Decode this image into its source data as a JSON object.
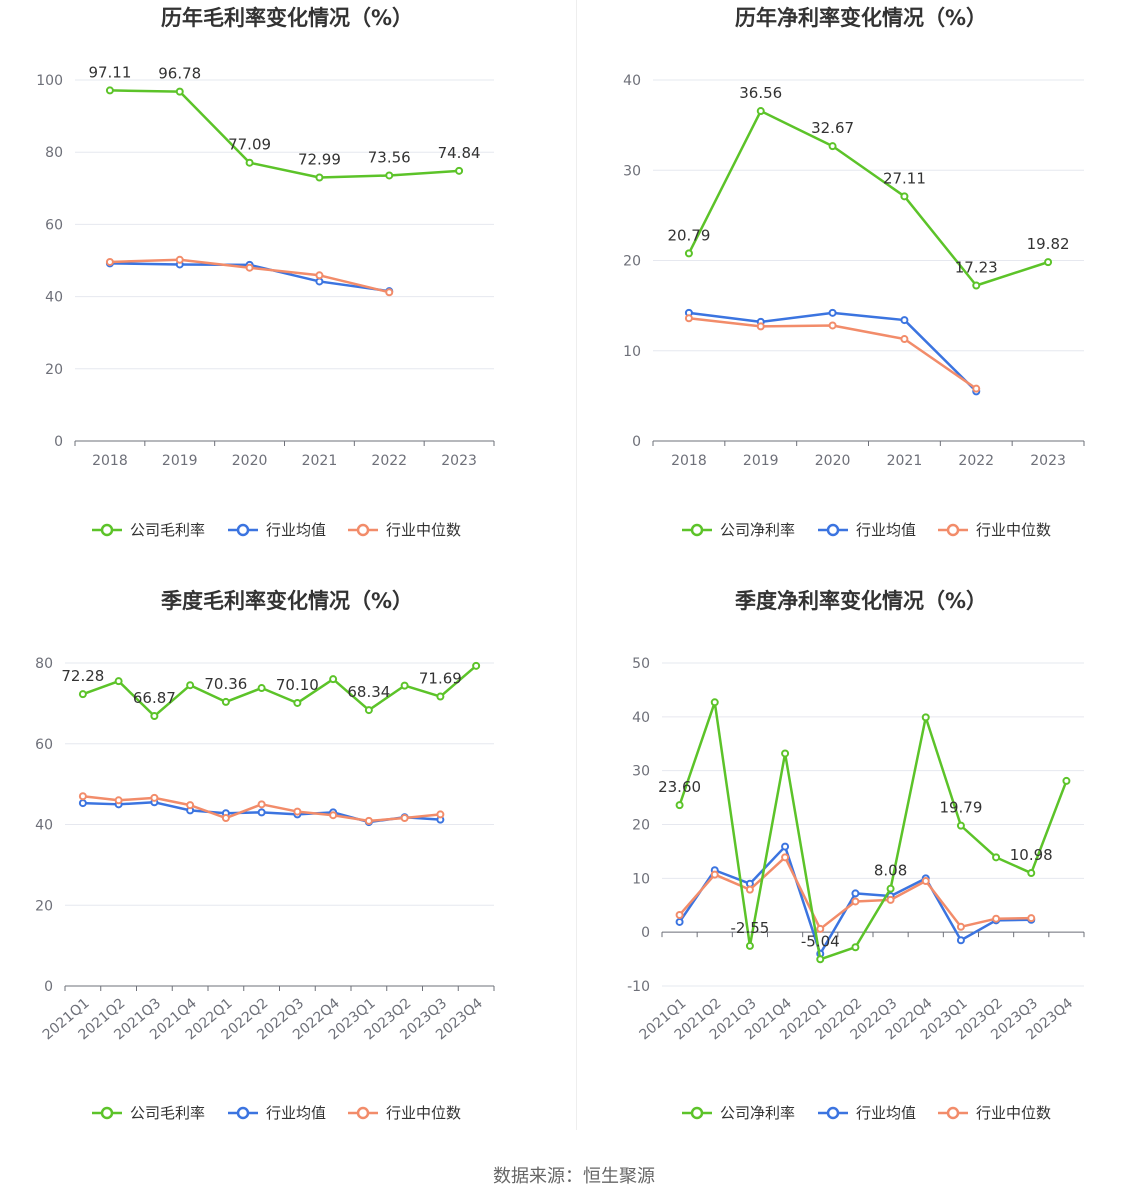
{
  "source": "数据来源：恒生聚源",
  "legend_labels": {
    "gross": [
      "公司毛利率",
      "行业均值",
      "行业中位数"
    ],
    "net": [
      "公司净利率",
      "行业均值",
      "行业中位数"
    ]
  },
  "colors": {
    "company": "#5cc329",
    "avg": "#3b74e0",
    "median": "#f28c6a",
    "grid": "#e6e8ef",
    "axis": "#6e7079"
  },
  "chart_data": [
    {
      "id": "annual-gross",
      "type": "line",
      "title": "历年毛利率变化情况（%）",
      "categories": [
        "2018",
        "2019",
        "2020",
        "2021",
        "2022",
        "2023"
      ],
      "ylim": [
        0,
        100
      ],
      "yticks": [
        0,
        20,
        40,
        60,
        80,
        100
      ],
      "series": [
        {
          "name": "公司毛利率",
          "values": [
            97.11,
            96.78,
            77.09,
            72.99,
            73.56,
            74.84
          ],
          "labels": [
            "97.11",
            "96.78",
            "77.09",
            "72.99",
            "73.56",
            "74.84"
          ]
        },
        {
          "name": "行业均值",
          "values": [
            49.2,
            48.9,
            48.8,
            44.2,
            41.5,
            null
          ]
        },
        {
          "name": "行业中位数",
          "values": [
            49.6,
            50.2,
            48.0,
            45.9,
            41.2,
            null
          ]
        }
      ]
    },
    {
      "id": "annual-net",
      "type": "line",
      "title": "历年净利率变化情况（%）",
      "categories": [
        "2018",
        "2019",
        "2020",
        "2021",
        "2022",
        "2023"
      ],
      "ylim": [
        0,
        40
      ],
      "yticks": [
        0,
        10,
        20,
        30,
        40
      ],
      "series": [
        {
          "name": "公司净利率",
          "values": [
            20.79,
            36.56,
            32.67,
            27.11,
            17.23,
            19.82
          ],
          "labels": [
            "20.79",
            "36.56",
            "32.67",
            "27.11",
            "17.23",
            "19.82"
          ]
        },
        {
          "name": "行业均值",
          "values": [
            14.2,
            13.2,
            14.2,
            13.4,
            5.5,
            null
          ]
        },
        {
          "name": "行业中位数",
          "values": [
            13.6,
            12.7,
            12.8,
            11.3,
            5.8,
            null
          ]
        }
      ]
    },
    {
      "id": "quarter-gross",
      "type": "line",
      "title": "季度毛利率变化情况（%）",
      "categories": [
        "2021Q1",
        "2021Q2",
        "2021Q3",
        "2021Q4",
        "2022Q1",
        "2022Q2",
        "2022Q3",
        "2022Q4",
        "2023Q1",
        "2023Q2",
        "2023Q3",
        "2023Q4"
      ],
      "ylim": [
        0,
        80
      ],
      "yticks": [
        0,
        20,
        40,
        60,
        80
      ],
      "series": [
        {
          "name": "公司毛利率",
          "values": [
            72.28,
            75.5,
            66.87,
            74.5,
            70.36,
            73.8,
            70.1,
            76.0,
            68.34,
            74.4,
            71.69,
            79.3
          ],
          "labels": [
            "72.28",
            "",
            "66.87",
            "",
            "70.36",
            "",
            "70.10",
            "",
            "68.34",
            "",
            "71.69",
            ""
          ]
        },
        {
          "name": "行业均值",
          "values": [
            45.3,
            45.0,
            45.5,
            43.5,
            42.8,
            43.0,
            42.5,
            43.0,
            40.6,
            41.8,
            41.2,
            null
          ]
        },
        {
          "name": "行业中位数",
          "values": [
            47.0,
            46.0,
            46.6,
            44.8,
            41.6,
            45.0,
            43.2,
            42.3,
            40.9,
            41.6,
            42.5,
            null
          ]
        }
      ]
    },
    {
      "id": "quarter-net",
      "type": "line",
      "title": "季度净利率变化情况（%）",
      "categories": [
        "2021Q1",
        "2021Q2",
        "2021Q3",
        "2021Q4",
        "2022Q1",
        "2022Q2",
        "2022Q3",
        "2022Q4",
        "2023Q1",
        "2023Q2",
        "2023Q3",
        "2023Q4"
      ],
      "ylim": [
        -10,
        50
      ],
      "yticks": [
        -10,
        0,
        10,
        20,
        30,
        40,
        50
      ],
      "series": [
        {
          "name": "公司净利率",
          "values": [
            23.6,
            42.7,
            -2.55,
            33.2,
            -5.04,
            -2.8,
            8.08,
            39.9,
            19.79,
            13.9,
            10.98,
            28.1
          ],
          "labels": [
            "23.60",
            "",
            "-2.55",
            "",
            "-5.04",
            "",
            "8.08",
            "",
            "19.79",
            "",
            "10.98",
            ""
          ]
        },
        {
          "name": "行业均值",
          "values": [
            1.9,
            11.5,
            9.0,
            15.9,
            -4.0,
            7.2,
            6.7,
            10.0,
            -1.5,
            2.2,
            2.3,
            null
          ]
        },
        {
          "name": "行业中位数",
          "values": [
            3.2,
            10.7,
            7.9,
            13.9,
            0.6,
            5.7,
            6.0,
            9.5,
            1.0,
            2.5,
            2.6,
            null
          ]
        }
      ]
    }
  ]
}
